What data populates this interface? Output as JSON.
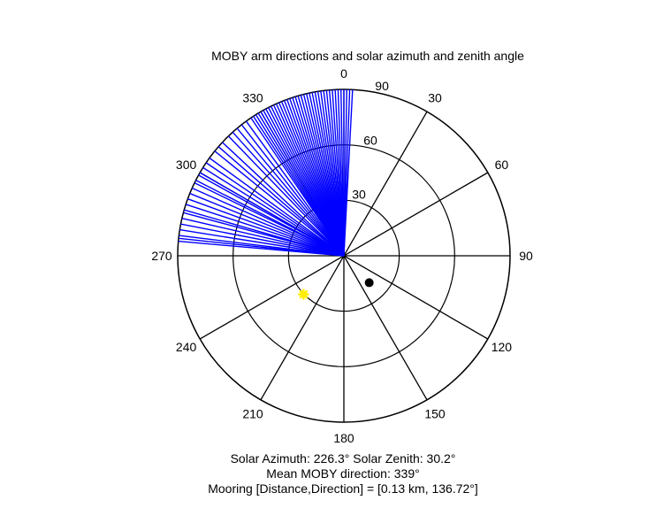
{
  "chart_data": {
    "type": "polar",
    "title": "MOBY arm directions and solar azimuth and zenith angle",
    "theta_direction": "clockwise",
    "theta_zero": "north",
    "r_max": 90,
    "r_ticks": [
      "30",
      "60",
      "90"
    ],
    "r_tick_values": [
      30,
      60,
      90
    ],
    "theta_ticks": [
      "0",
      "30",
      "60",
      "90",
      "120",
      "150",
      "180",
      "210",
      "240",
      "270",
      "300",
      "330"
    ],
    "theta_tick_values": [
      0,
      30,
      60,
      90,
      120,
      150,
      180,
      210,
      240,
      270,
      300,
      330
    ],
    "arm_directions_deg": [
      275,
      276,
      277,
      279,
      281,
      283,
      285,
      286,
      288,
      290,
      292,
      294,
      296,
      297,
      299,
      300,
      302,
      304,
      306,
      309,
      311,
      313,
      316,
      318,
      320,
      322,
      324,
      326,
      327,
      328,
      329,
      330,
      331,
      332,
      333,
      334,
      335,
      336,
      337,
      338,
      339,
      340,
      341,
      342,
      343,
      344,
      345,
      346,
      347,
      348,
      349,
      350,
      351,
      352,
      353,
      354,
      355,
      356,
      357,
      358,
      359,
      0,
      1,
      2,
      3
    ],
    "arm_length": 90,
    "arm_color": "#0000ff",
    "mean_direction_deg": 339,
    "solar": {
      "azimuth_deg": 226.3,
      "zenith_deg": 30.2,
      "color": "#ffee00",
      "marker": "star"
    },
    "mooring": {
      "direction_deg": 136.72,
      "r": 20,
      "color": "#000000",
      "marker": "dot"
    },
    "grid": true
  },
  "captions": {
    "solar_line": "Solar Azimuth: 226.3°   Solar Zenith: 30.2°",
    "mean_line": "Mean MOBY direction: 339°",
    "mooring_line": "Mooring [Distance,Direction] = [0.13 km, 136.72°]"
  }
}
